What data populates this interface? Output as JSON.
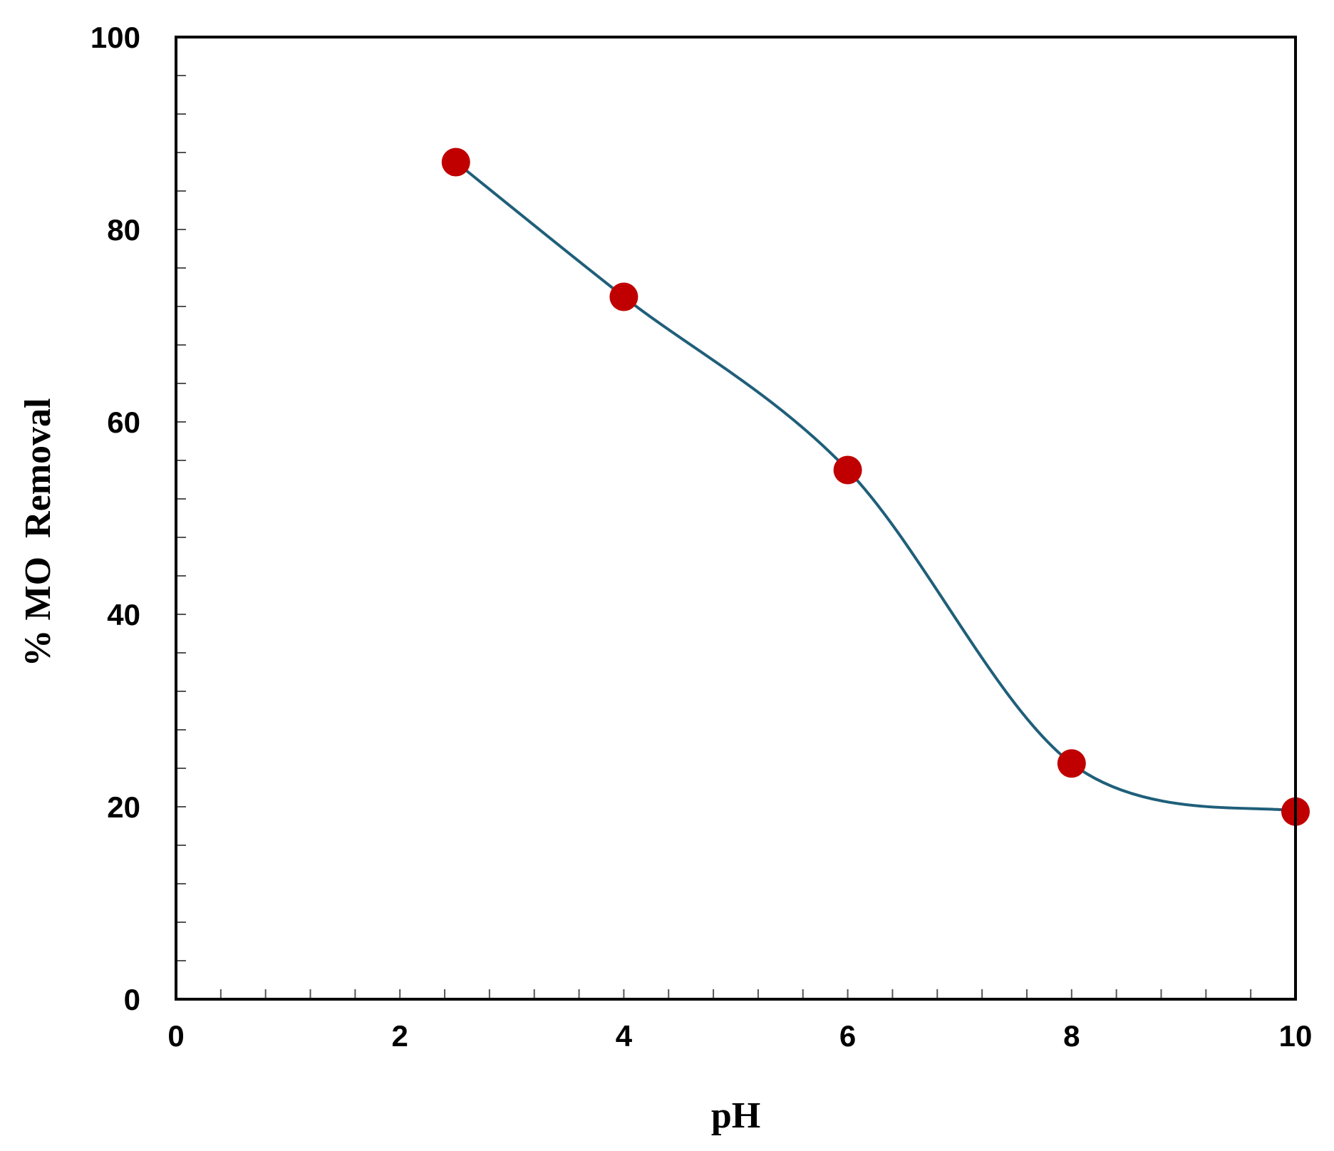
{
  "chart_data": {
    "type": "line",
    "title": "",
    "xlabel": "pH",
    "ylabel": "% MO  Removal",
    "xlim": [
      0,
      10
    ],
    "ylim": [
      0,
      100
    ],
    "xticks": [
      0,
      2,
      4,
      6,
      8,
      10
    ],
    "yticks": [
      0,
      20,
      40,
      60,
      80,
      100
    ],
    "x_minor_step": 0.4,
    "y_minor_step": 4,
    "grid": false,
    "smooth_line": true,
    "series": [
      {
        "x": [
          2.5,
          4,
          6,
          8,
          10
        ],
        "y": [
          87,
          73,
          55,
          24.5,
          19.5
        ],
        "line_color": "#1f5f7a",
        "marker_color": "#c00000"
      }
    ]
  }
}
